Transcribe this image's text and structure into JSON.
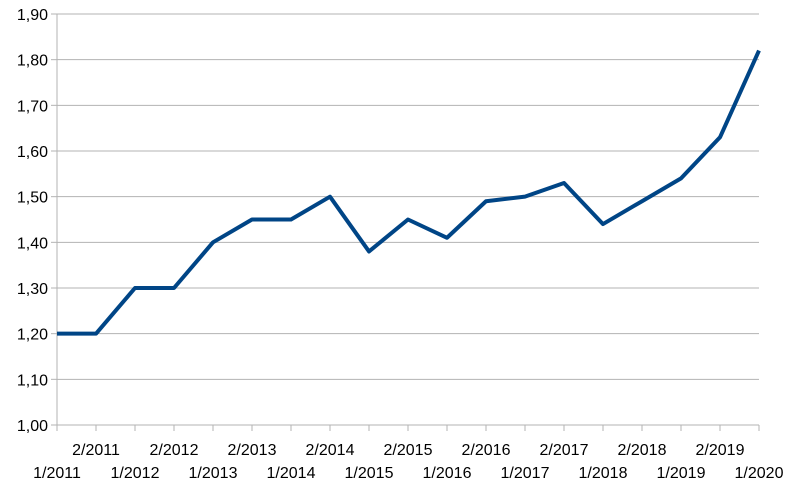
{
  "chart_data": {
    "type": "line",
    "title": "",
    "xlabel": "",
    "ylabel": "",
    "ylim": [
      1.0,
      1.9
    ],
    "y_ticks": [
      "1,00",
      "1,10",
      "1,20",
      "1,30",
      "1,40",
      "1,50",
      "1,60",
      "1,70",
      "1,80",
      "1,90"
    ],
    "grid": "horizontal",
    "legend": "none",
    "categories": [
      "1/2011",
      "2/2011",
      "1/2012",
      "2/2012",
      "1/2013",
      "2/2013",
      "1/2014",
      "2/2014",
      "1/2015",
      "2/2015",
      "1/2016",
      "2/2016",
      "1/2017",
      "2/2017",
      "1/2018",
      "2/2018",
      "1/2019",
      "2/2019",
      "1/2020"
    ],
    "series": [
      {
        "color": "#004586",
        "values": [
          1.2,
          1.2,
          1.3,
          1.3,
          1.4,
          1.45,
          1.45,
          1.5,
          1.38,
          1.45,
          1.41,
          1.49,
          1.5,
          1.53,
          1.44,
          1.49,
          1.54,
          1.63,
          1.82
        ]
      }
    ],
    "gridline_color": "#b3b3b3",
    "axis_color": "#b3b3b3"
  }
}
